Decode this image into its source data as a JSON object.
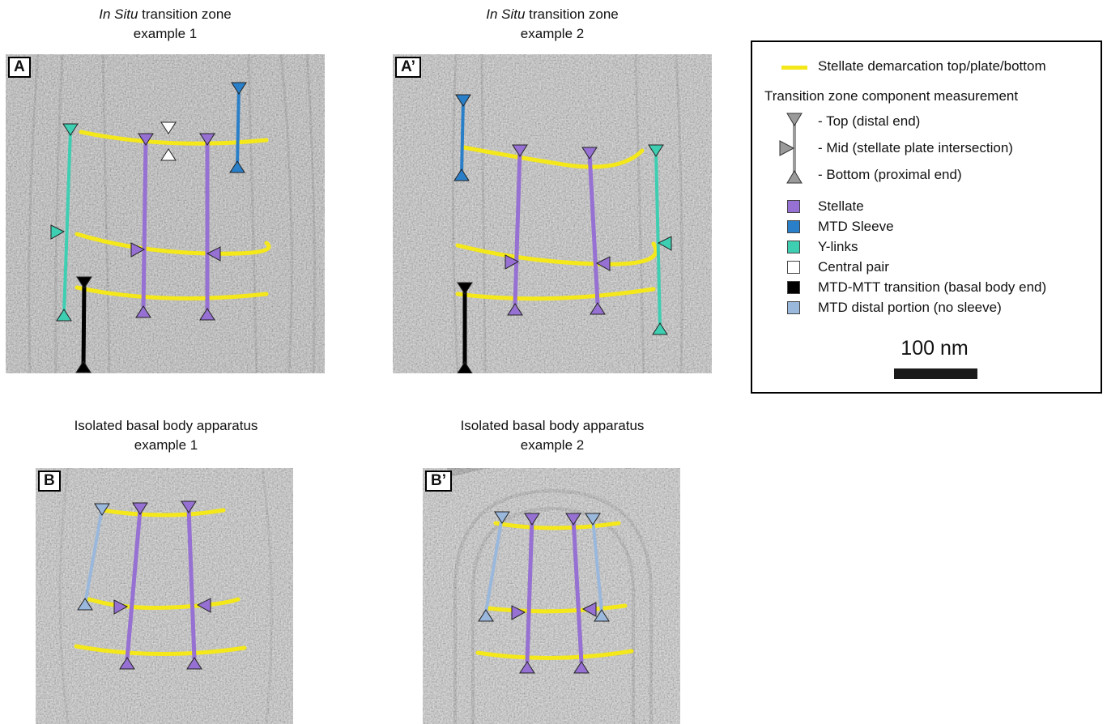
{
  "panels": [
    {
      "id": "A",
      "label": "A",
      "title_italic": "In Situ",
      "title_rest": " transition zone",
      "subtitle": "example 1"
    },
    {
      "id": "A2",
      "label": "A’",
      "title_italic": "In Situ",
      "title_rest": " transition zone",
      "subtitle": "example 2"
    },
    {
      "id": "B",
      "label": "B",
      "title_italic": "",
      "title_rest": "Isolated basal body apparatus",
      "subtitle": "example 1"
    },
    {
      "id": "B2",
      "label": "B’",
      "title_italic": "",
      "title_rest": "Isolated basal body apparatus",
      "subtitle": "example 2"
    }
  ],
  "legend": {
    "demarcation": "Stellate demarcation top/plate/bottom",
    "heading": "Transition zone component measurement",
    "markers": {
      "top": "- Top (distal end)",
      "mid": "- Mid (stellate plate intersection)",
      "bottom": "- Bottom (proximal end)"
    },
    "components": [
      {
        "label": "Stellate",
        "color": "#9670d2"
      },
      {
        "label": "MTD Sleeve",
        "color": "#2a7fc9"
      },
      {
        "label": "Y-links",
        "color": "#3ecfb3"
      },
      {
        "label": "Central pair",
        "color": "#ffffff"
      },
      {
        "label": "MTD-MTT transition (basal body end)",
        "color": "#000000"
      },
      {
        "label": "MTD distal portion (no sleeve)",
        "color": "#9ab7dc"
      }
    ],
    "scale_bar": "100 nm"
  },
  "colors": {
    "yellow": "#f4e81a",
    "stellate": "#9670d2",
    "sleeve": "#2a7fc9",
    "ylinks": "#3ecfb3",
    "central": "#ffffff",
    "transition": "#000000",
    "distal": "#9ab7dc",
    "marker_gray": "#9a9a9a"
  }
}
